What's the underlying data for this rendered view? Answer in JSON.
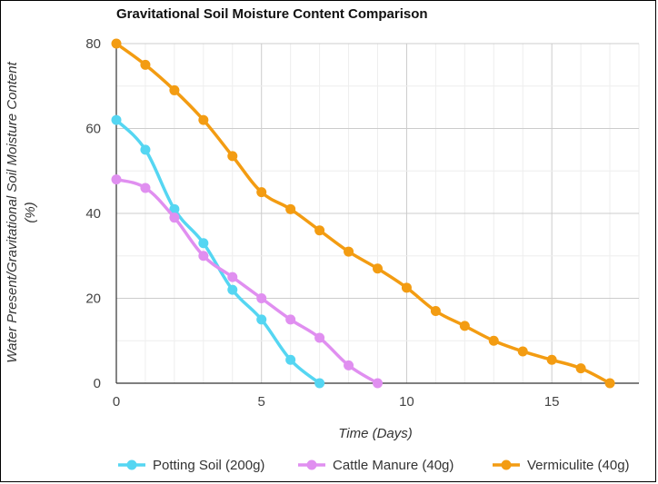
{
  "chart_data": {
    "type": "line",
    "title": "Gravitational Soil Moisture Content Comparison",
    "xlabel": "Time (Days)",
    "ylabel_line1": "Water Present/Gravitational Soil Moisture Content",
    "ylabel_line2": "(%)",
    "xlim": [
      0,
      18
    ],
    "ylim": [
      0,
      80
    ],
    "x_ticks": [
      0,
      5,
      10,
      15
    ],
    "y_ticks": [
      0,
      20,
      40,
      60,
      80
    ],
    "grid": true,
    "legend_position": "bottom",
    "series": [
      {
        "name": "Potting Soil (200g)",
        "color": "#55d6f2",
        "x": [
          0,
          1,
          2,
          3,
          4,
          5,
          6,
          7
        ],
        "values": [
          62,
          55,
          41,
          33,
          22,
          15,
          5.5,
          0
        ]
      },
      {
        "name": "Cattle Manure (40g)",
        "color": "#e08ff0",
        "x": [
          0,
          1,
          2,
          3,
          4,
          5,
          6,
          7,
          8,
          9
        ],
        "values": [
          48,
          46,
          39,
          30,
          25,
          20,
          15,
          10.7,
          4.2,
          0
        ]
      },
      {
        "name": "Vermiculite (40g)",
        "color": "#f39c12",
        "x": [
          0,
          1,
          2,
          3,
          4,
          5,
          6,
          7,
          8,
          9,
          10,
          11,
          12,
          13,
          14,
          15,
          16,
          17
        ],
        "values": [
          80,
          75,
          69,
          62,
          53.5,
          45,
          41,
          36,
          31,
          27,
          22.5,
          17,
          13.5,
          10,
          7.5,
          5.5,
          3.5,
          0
        ]
      }
    ]
  }
}
